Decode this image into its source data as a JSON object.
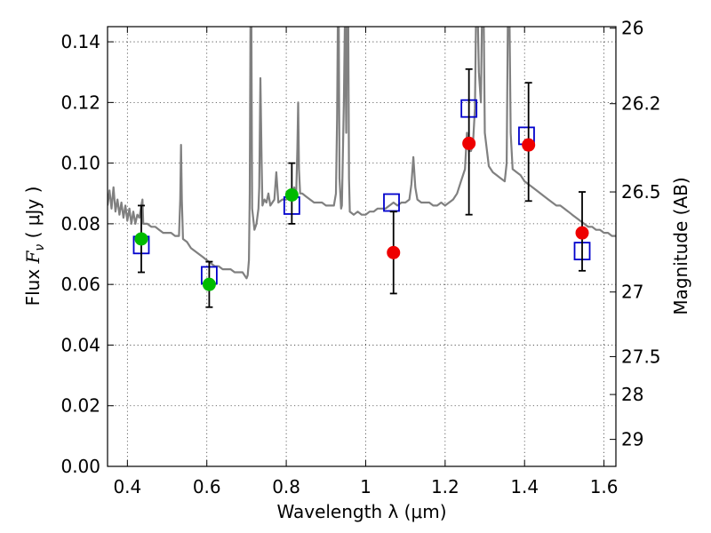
{
  "chart_data": {
    "type": "scatter",
    "xlabel": "Wavelength  λ (μm)",
    "ylabel": "Flux  F_ν  ( μJy )",
    "ylabel_parts": {
      "pre": "Flux  ",
      "var": "F",
      "sub": "ν",
      "post": "  ( μJy )"
    },
    "y2label": "Magnitude (AB)",
    "xlim": [
      0.35,
      1.63
    ],
    "ylim": [
      0.0,
      0.145
    ],
    "grid": true,
    "x_ticks": [
      0.4,
      0.6,
      0.8,
      1.0,
      1.2,
      1.4,
      1.6
    ],
    "x_tick_labels": [
      "0.4",
      "0.6",
      "0.8",
      "1",
      "1.2",
      "1.4",
      "1.6"
    ],
    "y_ticks": [
      0.0,
      0.02,
      0.04,
      0.06,
      0.08,
      0.1,
      0.12,
      0.14
    ],
    "y_tick_labels": [
      "0.00",
      "0.02",
      "0.04",
      "0.06",
      "0.08",
      "0.10",
      "0.12",
      "0.14"
    ],
    "y2_ticks": [
      {
        "label": "26",
        "flux": 0.1445
      },
      {
        "label": "26.2",
        "flux": 0.1196
      },
      {
        "label": "26.5",
        "flux": 0.0905
      },
      {
        "label": "27",
        "flux": 0.0575
      },
      {
        "label": "27.5",
        "flux": 0.0362
      },
      {
        "label": "28",
        "flux": 0.0237
      },
      {
        "label": "29",
        "flux": 0.0089
      }
    ],
    "colors": {
      "spectrum": "#808080",
      "model": "#0000cc",
      "detection_green": "#00bb00",
      "detection_red": "#ee0000",
      "errorbar": "#000000"
    },
    "spectrum": [
      [
        0.35,
        0.086
      ],
      [
        0.355,
        0.091
      ],
      [
        0.36,
        0.085
      ],
      [
        0.365,
        0.092
      ],
      [
        0.37,
        0.084
      ],
      [
        0.375,
        0.088
      ],
      [
        0.38,
        0.083
      ],
      [
        0.385,
        0.087
      ],
      [
        0.39,
        0.082
      ],
      [
        0.395,
        0.086
      ],
      [
        0.4,
        0.081
      ],
      [
        0.405,
        0.085
      ],
      [
        0.41,
        0.08
      ],
      [
        0.415,
        0.084
      ],
      [
        0.42,
        0.08
      ],
      [
        0.425,
        0.083
      ],
      [
        0.43,
        0.082
      ],
      [
        0.435,
        0.086
      ],
      [
        0.438,
        0.088
      ],
      [
        0.44,
        0.08
      ],
      [
        0.45,
        0.08
      ],
      [
        0.46,
        0.079
      ],
      [
        0.47,
        0.079
      ],
      [
        0.48,
        0.078
      ],
      [
        0.49,
        0.077
      ],
      [
        0.5,
        0.077
      ],
      [
        0.51,
        0.077
      ],
      [
        0.52,
        0.076
      ],
      [
        0.53,
        0.076
      ],
      [
        0.533,
        0.088
      ],
      [
        0.535,
        0.106
      ],
      [
        0.537,
        0.088
      ],
      [
        0.54,
        0.075
      ],
      [
        0.55,
        0.074
      ],
      [
        0.56,
        0.072
      ],
      [
        0.57,
        0.071
      ],
      [
        0.58,
        0.07
      ],
      [
        0.59,
        0.069
      ],
      [
        0.6,
        0.068
      ],
      [
        0.61,
        0.067
      ],
      [
        0.62,
        0.066
      ],
      [
        0.63,
        0.066
      ],
      [
        0.64,
        0.065
      ],
      [
        0.65,
        0.065
      ],
      [
        0.66,
        0.065
      ],
      [
        0.67,
        0.064
      ],
      [
        0.68,
        0.064
      ],
      [
        0.69,
        0.064
      ],
      [
        0.7,
        0.062
      ],
      [
        0.703,
        0.063
      ],
      [
        0.706,
        0.068
      ],
      [
        0.708,
        0.09
      ],
      [
        0.71,
        0.15
      ],
      [
        0.712,
        0.15
      ],
      [
        0.714,
        0.085
      ],
      [
        0.72,
        0.078
      ],
      [
        0.725,
        0.08
      ],
      [
        0.73,
        0.085
      ],
      [
        0.732,
        0.092
      ],
      [
        0.735,
        0.128
      ],
      [
        0.738,
        0.1
      ],
      [
        0.74,
        0.086
      ],
      [
        0.745,
        0.088
      ],
      [
        0.75,
        0.087
      ],
      [
        0.755,
        0.09
      ],
      [
        0.76,
        0.086
      ],
      [
        0.77,
        0.088
      ],
      [
        0.775,
        0.097
      ],
      [
        0.78,
        0.087
      ],
      [
        0.79,
        0.088
      ],
      [
        0.8,
        0.088
      ],
      [
        0.81,
        0.089
      ],
      [
        0.815,
        0.09
      ],
      [
        0.82,
        0.092
      ],
      [
        0.825,
        0.09
      ],
      [
        0.828,
        0.105
      ],
      [
        0.83,
        0.12
      ],
      [
        0.832,
        0.098
      ],
      [
        0.835,
        0.09
      ],
      [
        0.84,
        0.09
      ],
      [
        0.85,
        0.089
      ],
      [
        0.86,
        0.088
      ],
      [
        0.87,
        0.087
      ],
      [
        0.88,
        0.087
      ],
      [
        0.89,
        0.087
      ],
      [
        0.9,
        0.086
      ],
      [
        0.91,
        0.086
      ],
      [
        0.92,
        0.086
      ],
      [
        0.925,
        0.09
      ],
      [
        0.928,
        0.115
      ],
      [
        0.93,
        0.15
      ],
      [
        0.932,
        0.15
      ],
      [
        0.934,
        0.095
      ],
      [
        0.938,
        0.085
      ],
      [
        0.94,
        0.086
      ],
      [
        0.945,
        0.12
      ],
      [
        0.948,
        0.15
      ],
      [
        0.951,
        0.11
      ],
      [
        0.953,
        0.15
      ],
      [
        0.956,
        0.15
      ],
      [
        0.958,
        0.095
      ],
      [
        0.96,
        0.084
      ],
      [
        0.97,
        0.083
      ],
      [
        0.98,
        0.084
      ],
      [
        0.99,
        0.083
      ],
      [
        1.0,
        0.083
      ],
      [
        1.01,
        0.084
      ],
      [
        1.02,
        0.084
      ],
      [
        1.03,
        0.085
      ],
      [
        1.04,
        0.085
      ],
      [
        1.05,
        0.085
      ],
      [
        1.06,
        0.086
      ],
      [
        1.07,
        0.087
      ],
      [
        1.08,
        0.086
      ],
      [
        1.09,
        0.087
      ],
      [
        1.1,
        0.087
      ],
      [
        1.11,
        0.088
      ],
      [
        1.115,
        0.093
      ],
      [
        1.12,
        0.102
      ],
      [
        1.125,
        0.092
      ],
      [
        1.13,
        0.088
      ],
      [
        1.14,
        0.087
      ],
      [
        1.15,
        0.087
      ],
      [
        1.16,
        0.087
      ],
      [
        1.17,
        0.086
      ],
      [
        1.18,
        0.086
      ],
      [
        1.19,
        0.087
      ],
      [
        1.2,
        0.086
      ],
      [
        1.21,
        0.087
      ],
      [
        1.22,
        0.088
      ],
      [
        1.23,
        0.09
      ],
      [
        1.24,
        0.094
      ],
      [
        1.25,
        0.098
      ],
      [
        1.255,
        0.11
      ],
      [
        1.26,
        0.104
      ],
      [
        1.265,
        0.104
      ],
      [
        1.27,
        0.106
      ],
      [
        1.275,
        0.118
      ],
      [
        1.278,
        0.15
      ],
      [
        1.282,
        0.15
      ],
      [
        1.285,
        0.13
      ],
      [
        1.29,
        0.12
      ],
      [
        1.293,
        0.15
      ],
      [
        1.297,
        0.15
      ],
      [
        1.3,
        0.11
      ],
      [
        1.31,
        0.099
      ],
      [
        1.32,
        0.097
      ],
      [
        1.33,
        0.096
      ],
      [
        1.34,
        0.095
      ],
      [
        1.35,
        0.094
      ],
      [
        1.355,
        0.1
      ],
      [
        1.358,
        0.15
      ],
      [
        1.362,
        0.15
      ],
      [
        1.365,
        0.11
      ],
      [
        1.37,
        0.098
      ],
      [
        1.38,
        0.097
      ],
      [
        1.39,
        0.096
      ],
      [
        1.4,
        0.094
      ],
      [
        1.41,
        0.093
      ],
      [
        1.42,
        0.092
      ],
      [
        1.43,
        0.091
      ],
      [
        1.44,
        0.09
      ],
      [
        1.45,
        0.089
      ],
      [
        1.46,
        0.088
      ],
      [
        1.47,
        0.087
      ],
      [
        1.48,
        0.086
      ],
      [
        1.49,
        0.086
      ],
      [
        1.5,
        0.085
      ],
      [
        1.51,
        0.084
      ],
      [
        1.52,
        0.083
      ],
      [
        1.53,
        0.082
      ],
      [
        1.54,
        0.081
      ],
      [
        1.55,
        0.08
      ],
      [
        1.56,
        0.079
      ],
      [
        1.57,
        0.079
      ],
      [
        1.58,
        0.078
      ],
      [
        1.59,
        0.078
      ],
      [
        1.6,
        0.077
      ],
      [
        1.61,
        0.077
      ],
      [
        1.62,
        0.076
      ],
      [
        1.63,
        0.076
      ]
    ],
    "model_points": [
      {
        "x": 0.435,
        "y": 0.073
      },
      {
        "x": 0.606,
        "y": 0.063
      },
      {
        "x": 0.814,
        "y": 0.086
      },
      {
        "x": 1.065,
        "y": 0.087
      },
      {
        "x": 1.26,
        "y": 0.118
      },
      {
        "x": 1.405,
        "y": 0.109
      },
      {
        "x": 1.545,
        "y": 0.071
      }
    ],
    "observations": [
      {
        "x": 0.435,
        "y": 0.075,
        "err_lo": 0.011,
        "err_hi": 0.011,
        "color": "green"
      },
      {
        "x": 0.606,
        "y": 0.06,
        "err_lo": 0.0075,
        "err_hi": 0.0075,
        "color": "green"
      },
      {
        "x": 0.814,
        "y": 0.0895,
        "err_lo": 0.0095,
        "err_hi": 0.0105,
        "color": "green"
      },
      {
        "x": 1.07,
        "y": 0.0705,
        "err_lo": 0.0135,
        "err_hi": 0.0135,
        "color": "red"
      },
      {
        "x": 1.26,
        "y": 0.1065,
        "err_lo": 0.0235,
        "err_hi": 0.0245,
        "color": "red"
      },
      {
        "x": 1.41,
        "y": 0.106,
        "err_lo": 0.0185,
        "err_hi": 0.0205,
        "color": "red"
      },
      {
        "x": 1.545,
        "y": 0.077,
        "err_lo": 0.0125,
        "err_hi": 0.0135,
        "color": "red"
      }
    ]
  }
}
